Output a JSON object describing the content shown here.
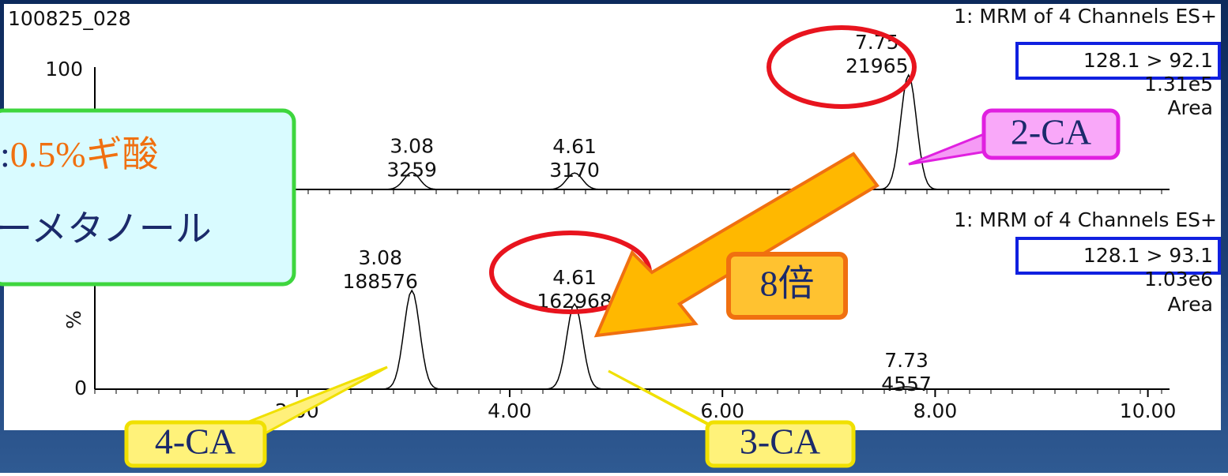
{
  "header": {
    "sample": "100825_028"
  },
  "panels": [
    {
      "channel_title": "1: MRM of 4 Channels ES+",
      "transition": "128.1 > 92.1",
      "intensity": "1.31e5",
      "mode": "Area",
      "y_max_label": "100",
      "peaks": [
        {
          "rt": "3.08",
          "area": "3259"
        },
        {
          "rt": "4.61",
          "area": "3170"
        },
        {
          "rt": "7.75",
          "area": "21965"
        }
      ]
    },
    {
      "channel_title": "1: MRM of 4 Channels ES+",
      "transition": "128.1 > 93.1",
      "intensity": "1.03e6",
      "mode": "Area",
      "y_axis_label": "%",
      "y_min_label": "0",
      "peaks": [
        {
          "rt": "3.08",
          "area": "188576"
        },
        {
          "rt": "4.61",
          "area": "162968"
        },
        {
          "rt": "7.73",
          "area": "4557"
        }
      ]
    }
  ],
  "x_axis": {
    "ticks": [
      "2.00",
      "4.00",
      "6.00",
      "8.00",
      "10.00"
    ]
  },
  "conditions": {
    "line1_prefix": ":",
    "line1_highlight": "0.5%ギ酸",
    "line2": "ーメタノール"
  },
  "callouts": {
    "peak_2ca": "2-CA",
    "ratio": "8倍",
    "peak_4ca": "4-CA",
    "peak_3ca": "3-CA"
  }
}
